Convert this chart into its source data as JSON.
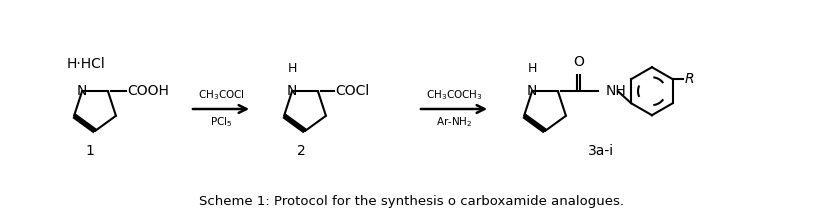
{
  "title": "Scheme 1: Protocol for the synthesis o carboxamide analogues.",
  "title_fontsize": 9.5,
  "background_color": "#ffffff",
  "text_color": "#000000",
  "fig_width": 8.24,
  "fig_height": 2.14,
  "dpi": 100,
  "compound1_label": "1",
  "compound2_label": "2",
  "compound3_label": "3a-i",
  "arrow1_top": "CH$_3$COCl",
  "arrow1_bottom": "PCl$_5$",
  "arrow2_top": "CH$_3$COCH$_3$",
  "arrow2_bottom": "Ar-NH$_2$",
  "hhcl": "H·HCl",
  "ring_r": 22,
  "lw": 1.5,
  "lw_bold": 4.0,
  "font_struct": 10,
  "font_small": 7.5,
  "font_label": 10
}
